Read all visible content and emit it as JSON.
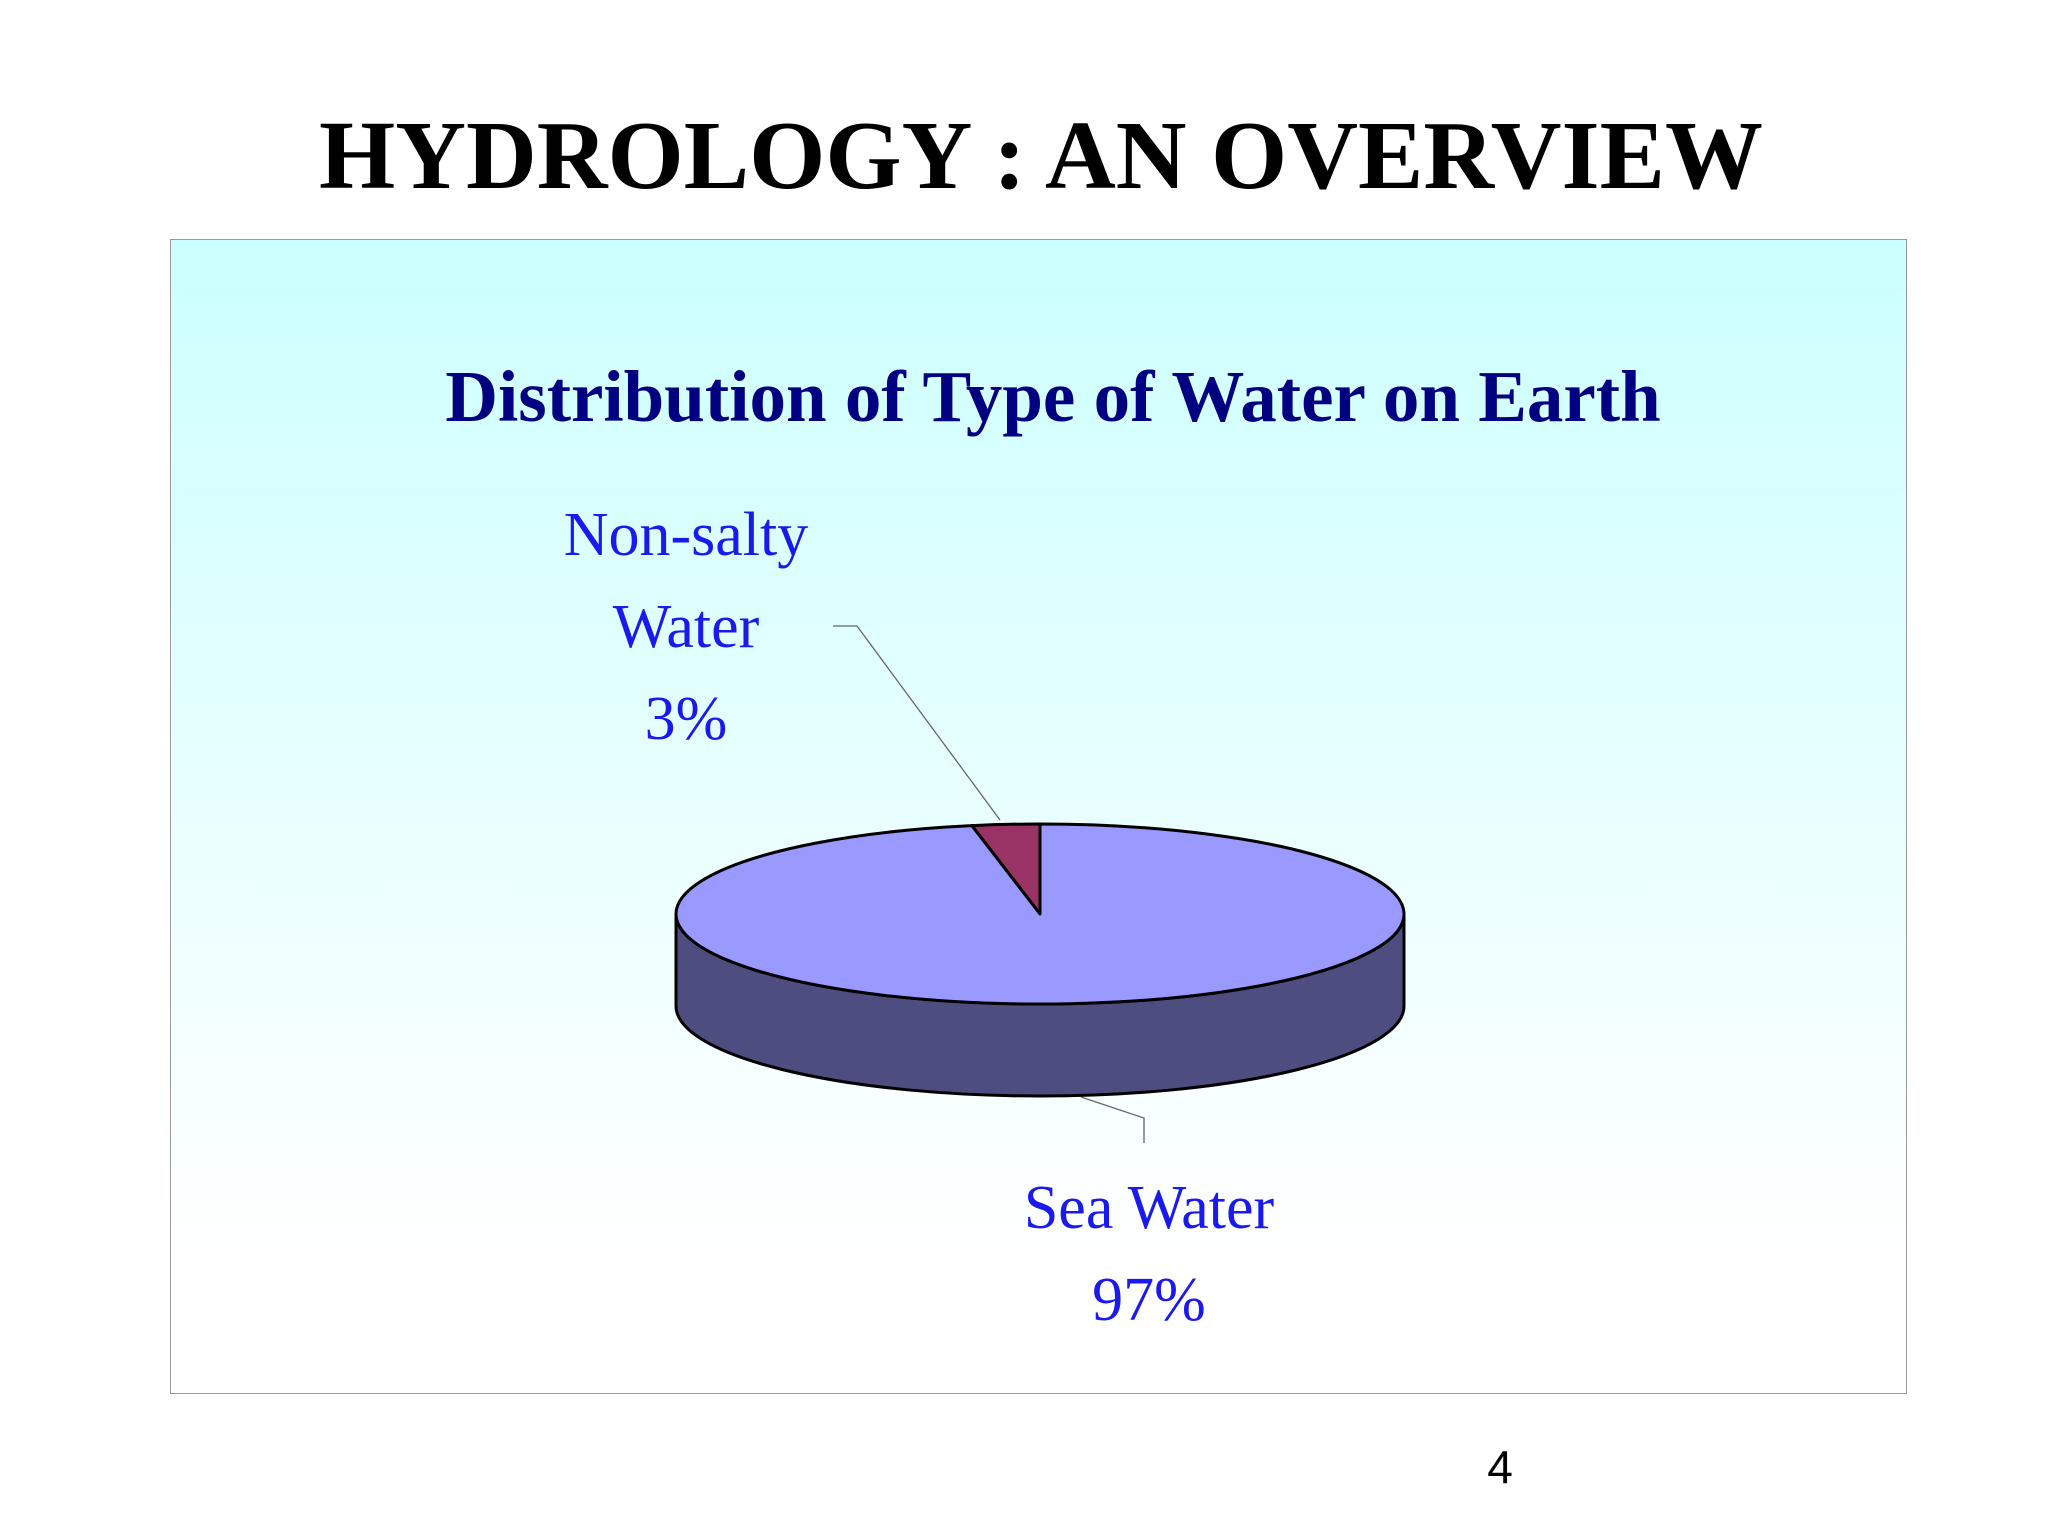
{
  "slide": {
    "title": "HYDROLOGY : AN OVERVIEW",
    "page_number": 4
  },
  "chart_data": {
    "type": "pie",
    "title": "Distribution of Type of Water on Earth",
    "categories": [
      "Non-salty Water",
      "Sea Water"
    ],
    "values": [
      3,
      97
    ],
    "value_labels": [
      "3%",
      "97%"
    ],
    "colors": [
      "#993366",
      "#9999ff"
    ],
    "label_color": "#1a1aee",
    "title_color": "#000080"
  }
}
